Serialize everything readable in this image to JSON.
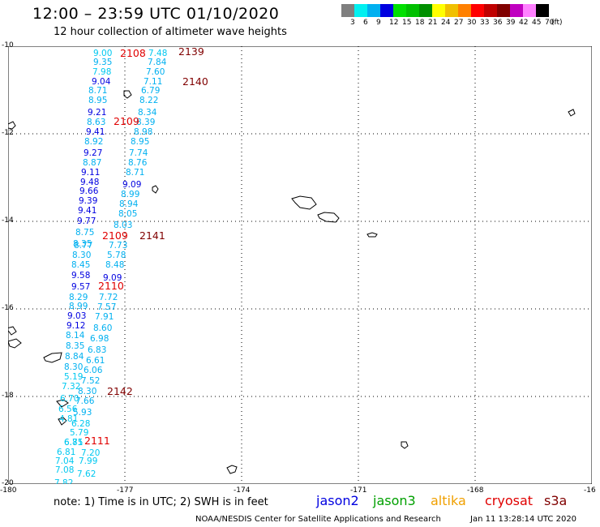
{
  "header": {
    "title": "12:00 – 23:59 UTC 01/10/2020",
    "subtitle": "12 hour collection of altimeter wave heights"
  },
  "colorbar": {
    "colors": [
      "#7f7f7f",
      "#00f0f0",
      "#00b0f0",
      "#0000e0",
      "#00e000",
      "#00c000",
      "#009000",
      "#ffff00",
      "#f0c000",
      "#ff8000",
      "#ff0000",
      "#c00000",
      "#800000",
      "#c000c0",
      "#ff80ff",
      "#000000"
    ],
    "labels": [
      "3",
      "6",
      "9",
      "12",
      "15",
      "18",
      "21",
      "24",
      "27",
      "30",
      "33",
      "36",
      "39",
      "42",
      "45",
      "70",
      "(ft)"
    ]
  },
  "axes": {
    "lat_ticks": [
      "-10",
      "-12",
      "-14",
      "-16",
      "-18",
      "-20"
    ],
    "lon_ticks": [
      "-180",
      "-177",
      "-174",
      "-171",
      "-168",
      "-16"
    ]
  },
  "track_values": [
    {
      "v": "9.00",
      "c": "#00c8f0"
    },
    {
      "v": "7.48",
      "c": "#00c8f0"
    },
    {
      "v": "9.35",
      "c": "#00b0f0"
    },
    {
      "v": "7.84",
      "c": "#00b0f0"
    },
    {
      "v": "7.98",
      "c": "#00c8f0"
    },
    {
      "v": "7.60",
      "c": "#00b0f0"
    },
    {
      "v": "9.04",
      "c": "#0000e0"
    },
    {
      "v": "7.11",
      "c": "#00b0f0"
    },
    {
      "v": "8.71",
      "c": "#00b0f0"
    },
    {
      "v": "6.79",
      "c": "#00b0f0"
    },
    {
      "v": "8.95",
      "c": "#00b0f0"
    },
    {
      "v": "8.22",
      "c": "#00b0f0"
    },
    {
      "v": "9.21",
      "c": "#0000e0"
    },
    {
      "v": "8.34",
      "c": "#00b0f0"
    },
    {
      "v": "8.63",
      "c": "#00b0f0"
    },
    {
      "v": "8.39",
      "c": "#00b0f0"
    },
    {
      "v": "9.41",
      "c": "#0000e0"
    },
    {
      "v": "8.98",
      "c": "#00b0f0"
    },
    {
      "v": "8.92",
      "c": "#00b0f0"
    },
    {
      "v": "8.95",
      "c": "#00b0f0"
    },
    {
      "v": "9.27",
      "c": "#0000e0"
    },
    {
      "v": "7.74",
      "c": "#00b0f0"
    },
    {
      "v": "8.87",
      "c": "#00b0f0"
    },
    {
      "v": "8.76",
      "c": "#00b0f0"
    },
    {
      "v": "9.11",
      "c": "#0000e0"
    },
    {
      "v": "8.71",
      "c": "#00b0f0"
    },
    {
      "v": "9.48",
      "c": "#0000e0"
    },
    {
      "v": "9.09",
      "c": "#0000e0"
    },
    {
      "v": "9.66",
      "c": "#0000e0"
    },
    {
      "v": "8.99",
      "c": "#00b0f0"
    },
    {
      "v": "9.39",
      "c": "#0000e0"
    },
    {
      "v": "8.94",
      "c": "#00b0f0"
    },
    {
      "v": "9.41",
      "c": "#0000e0"
    },
    {
      "v": "8.05",
      "c": "#00b0f0"
    },
    {
      "v": "9.77",
      "c": "#0000e0"
    },
    {
      "v": "8.03",
      "c": "#00b0f0"
    },
    {
      "v": "8.75",
      "c": "#00b0f0"
    },
    {
      "v": "8.35",
      "c": "#00b0f0"
    },
    {
      "v": "8.77",
      "c": "#00b0f0"
    },
    {
      "v": "7.73",
      "c": "#00b0f0"
    },
    {
      "v": "8.30",
      "c": "#00b0f0"
    },
    {
      "v": "5.78",
      "c": "#00b0f0"
    },
    {
      "v": "8.45",
      "c": "#00b0f0"
    },
    {
      "v": "8.48",
      "c": "#00b0f0"
    },
    {
      "v": "9.58",
      "c": "#0000e0"
    },
    {
      "v": "9.09",
      "c": "#0000e0"
    },
    {
      "v": "9.57",
      "c": "#0000e0"
    },
    {
      "v": "8.29",
      "c": "#00b0f0"
    },
    {
      "v": "7.72",
      "c": "#00b0f0"
    },
    {
      "v": "8.99",
      "c": "#00b0f0"
    },
    {
      "v": "7.57",
      "c": "#00b0f0"
    },
    {
      "v": "9.03",
      "c": "#0000e0"
    },
    {
      "v": "7.91",
      "c": "#00b0f0"
    },
    {
      "v": "9.12",
      "c": "#0000e0"
    },
    {
      "v": "8.60",
      "c": "#00b0f0"
    },
    {
      "v": "8.14",
      "c": "#00b0f0"
    },
    {
      "v": "6.98",
      "c": "#00b0f0"
    },
    {
      "v": "8.35",
      "c": "#00b0f0"
    },
    {
      "v": "6.83",
      "c": "#00b0f0"
    },
    {
      "v": "8.84",
      "c": "#00b0f0"
    },
    {
      "v": "6.61",
      "c": "#00b0f0"
    },
    {
      "v": "8.30",
      "c": "#00b0f0"
    },
    {
      "v": "6.06",
      "c": "#00b0f0"
    },
    {
      "v": "5.19",
      "c": "#00c8f0"
    },
    {
      "v": "7.52",
      "c": "#00b0f0"
    },
    {
      "v": "7.32",
      "c": "#00c8f0"
    },
    {
      "v": "8.30",
      "c": "#00b0f0"
    },
    {
      "v": "6.70",
      "c": "#00c8f0"
    },
    {
      "v": "7.66",
      "c": "#00b0f0"
    },
    {
      "v": "6.56",
      "c": "#00c8f0"
    },
    {
      "v": "5.93",
      "c": "#00b0f0"
    },
    {
      "v": "4.81",
      "c": "#00c8f0"
    },
    {
      "v": "6.28",
      "c": "#00c8f0"
    },
    {
      "v": "5.79",
      "c": "#00c8f0"
    },
    {
      "v": "6.85",
      "c": "#00c8f0"
    },
    {
      "v": "6.71",
      "c": "#00c8f0"
    },
    {
      "v": "6.81",
      "c": "#00c8f0"
    },
    {
      "v": "7.20",
      "c": "#00c8f0"
    },
    {
      "v": "7.04",
      "c": "#00c8f0"
    },
    {
      "v": "7.99",
      "c": "#00c8f0"
    },
    {
      "v": "7.08",
      "c": "#00c8f0"
    },
    {
      "v": "7.62",
      "c": "#00c8f0"
    },
    {
      "v": "7.82",
      "c": "#00c8f0"
    }
  ],
  "time_labels": [
    {
      "t": "2108",
      "c": "#e00000"
    },
    {
      "t": "2139",
      "c": "#800000"
    },
    {
      "t": "2140",
      "c": "#800000"
    },
    {
      "t": "2109",
      "c": "#e00000"
    },
    {
      "t": "2109",
      "c": "#e00000"
    },
    {
      "t": "2141",
      "c": "#800000"
    },
    {
      "t": "2110",
      "c": "#e00000"
    },
    {
      "t": "2142",
      "c": "#800000"
    },
    {
      "t": "2111",
      "c": "#e00000"
    }
  ],
  "note": "note:  1) Time is in UTC;  2) SWH is in feet",
  "legend": [
    {
      "label": "jason2",
      "color": "#0000e0"
    },
    {
      "label": "jason3",
      "color": "#00a000"
    },
    {
      "label": "altika",
      "color": "#f0a000"
    },
    {
      "label": "cryosat",
      "color": "#e00000"
    },
    {
      "label": "s3a",
      "color": "#800000"
    }
  ],
  "footer": {
    "credit": "NOAA/NESDIS Center for Satellite Applications and Research",
    "timestamp": "Jan 11 13:28:14 UTC 2020"
  }
}
